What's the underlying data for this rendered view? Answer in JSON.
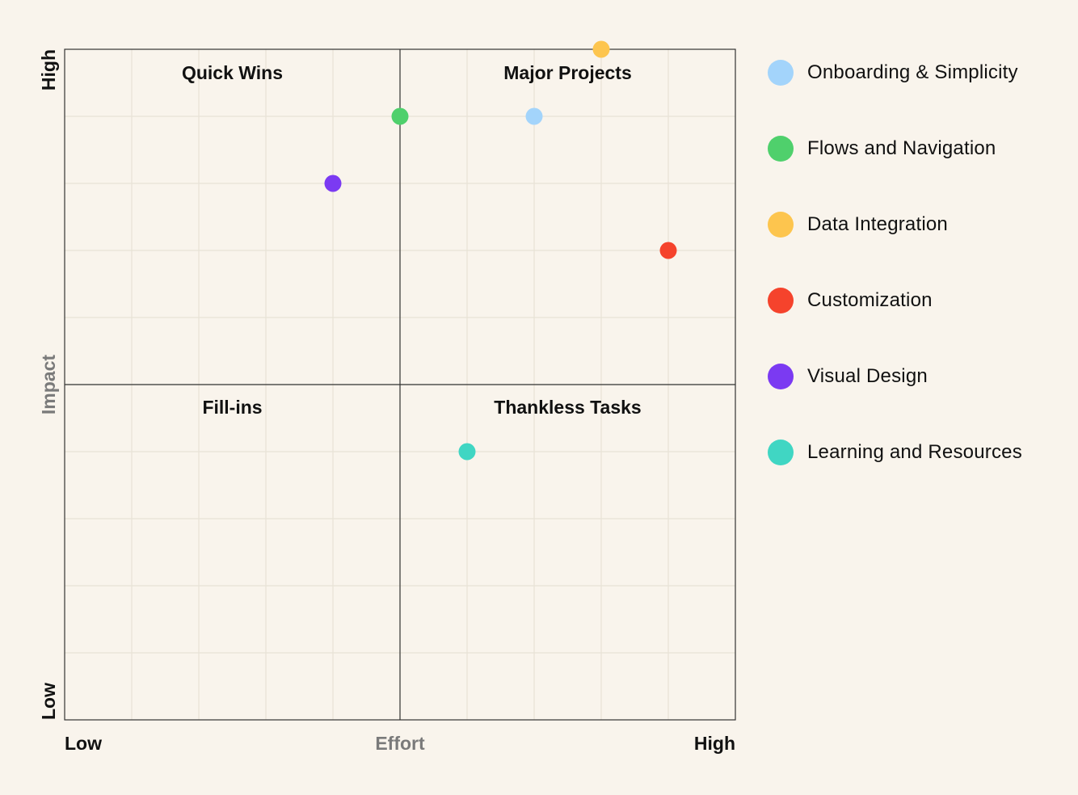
{
  "chart_data": {
    "type": "scatter",
    "title": "",
    "xlabel": "Effort",
    "ylabel": "Impact",
    "x_ends": {
      "low": "Low",
      "high": "High"
    },
    "y_ends": {
      "low": "Low",
      "high": "High"
    },
    "xlim": [
      0,
      10
    ],
    "ylim": [
      0,
      10
    ],
    "grid": true,
    "legend_position": "right",
    "quadrants": [
      {
        "label": "Quick Wins",
        "position": "top-left"
      },
      {
        "label": "Major Projects",
        "position": "top-right"
      },
      {
        "label": "Fill-ins",
        "position": "bottom-left"
      },
      {
        "label": "Thankless Tasks",
        "position": "bottom-right"
      }
    ],
    "series": [
      {
        "name": "Onboarding & Simplicity",
        "color": "#a3d4fb",
        "x": 7,
        "y": 9
      },
      {
        "name": "Flows and Navigation",
        "color": "#4fd06c",
        "x": 5,
        "y": 9
      },
      {
        "name": "Data Integration",
        "color": "#fdc54e",
        "x": 8,
        "y": 10
      },
      {
        "name": "Customization",
        "color": "#f5432c",
        "x": 9,
        "y": 7
      },
      {
        "name": "Visual Design",
        "color": "#7b3af2",
        "x": 4,
        "y": 8
      },
      {
        "name": "Learning and Resources",
        "color": "#40d6c3",
        "x": 6,
        "y": 4
      }
    ]
  }
}
